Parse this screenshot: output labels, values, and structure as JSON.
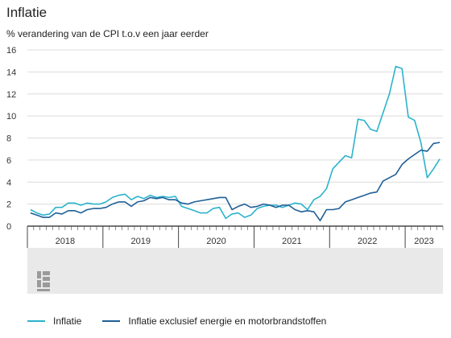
{
  "header": {
    "title": "Inflatie",
    "subtitle": "% verandering van de CPI t.o.v een jaar eerder"
  },
  "colors": {
    "inflatie": "#2bb3cc",
    "kern": "#1f5f96",
    "grid": "#dcdcdc",
    "footer_band": "#e9e9e9"
  },
  "logo": {
    "icon": "cbs-logo-icon"
  },
  "chart_data": {
    "type": "line",
    "title": "Inflatie",
    "subtitle": "% verandering van de CPI t.o.v een jaar eerder",
    "ylim": [
      0,
      16
    ],
    "yticks": [
      0,
      2,
      4,
      6,
      8,
      10,
      12,
      14,
      16
    ],
    "xlim": [
      "2018-01",
      "2023-06"
    ],
    "year_labels": [
      "2018",
      "2019",
      "2020",
      "2021",
      "2022",
      "2023"
    ],
    "grid": true,
    "legend": "bottom",
    "x": [
      "2018-01",
      "2018-02",
      "2018-03",
      "2018-04",
      "2018-05",
      "2018-06",
      "2018-07",
      "2018-08",
      "2018-09",
      "2018-10",
      "2018-11",
      "2018-12",
      "2019-01",
      "2019-02",
      "2019-03",
      "2019-04",
      "2019-05",
      "2019-06",
      "2019-07",
      "2019-08",
      "2019-09",
      "2019-10",
      "2019-11",
      "2019-12",
      "2020-01",
      "2020-02",
      "2020-03",
      "2020-04",
      "2020-05",
      "2020-06",
      "2020-07",
      "2020-08",
      "2020-09",
      "2020-10",
      "2020-11",
      "2020-12",
      "2021-01",
      "2021-02",
      "2021-03",
      "2021-04",
      "2021-05",
      "2021-06",
      "2021-07",
      "2021-08",
      "2021-09",
      "2021-10",
      "2021-11",
      "2021-12",
      "2022-01",
      "2022-02",
      "2022-03",
      "2022-04",
      "2022-05",
      "2022-06",
      "2022-07",
      "2022-08",
      "2022-09",
      "2022-10",
      "2022-11",
      "2022-12",
      "2023-01",
      "2023-02",
      "2023-03",
      "2023-04",
      "2023-05",
      "2023-06"
    ],
    "series": [
      {
        "name": "Inflatie",
        "color": "#2bb3cc",
        "values": [
          1.5,
          1.2,
          1.0,
          1.1,
          1.7,
          1.7,
          2.1,
          2.1,
          1.9,
          2.1,
          2.0,
          2.0,
          2.2,
          2.6,
          2.8,
          2.9,
          2.4,
          2.7,
          2.5,
          2.8,
          2.6,
          2.7,
          2.6,
          2.7,
          1.8,
          1.6,
          1.4,
          1.2,
          1.2,
          1.6,
          1.7,
          0.7,
          1.1,
          1.2,
          0.8,
          1.0,
          1.6,
          1.8,
          1.9,
          1.9,
          1.7,
          1.9,
          2.1,
          2.0,
          1.5,
          2.4,
          2.7,
          3.4,
          5.2,
          5.8,
          6.4,
          6.2,
          9.7,
          9.6,
          8.8,
          8.6,
          10.3,
          12.0,
          14.5,
          14.3,
          9.9,
          9.6,
          7.6,
          4.4,
          5.2,
          6.1
        ]
      },
      {
        "name": "Inflatie exclusief energie en motorbrandstoffen",
        "color": "#1f5f96",
        "values": [
          1.2,
          1.0,
          0.8,
          0.8,
          1.2,
          1.1,
          1.4,
          1.4,
          1.2,
          1.5,
          1.6,
          1.6,
          1.7,
          2.0,
          2.2,
          2.2,
          1.8,
          2.2,
          2.3,
          2.6,
          2.5,
          2.6,
          2.4,
          2.4,
          2.1,
          2.0,
          2.2,
          2.3,
          2.4,
          2.5,
          2.6,
          2.6,
          1.5,
          1.8,
          2.0,
          1.7,
          1.8,
          2.0,
          1.9,
          1.7,
          1.9,
          1.9,
          1.5,
          1.3,
          1.4,
          1.3,
          0.5,
          1.5,
          1.5,
          1.6,
          2.2,
          2.4,
          2.6,
          2.8,
          3.0,
          3.1,
          4.1,
          4.4,
          4.7,
          5.6,
          6.1,
          6.5,
          6.9,
          6.8,
          7.5,
          7.6
        ]
      }
    ]
  }
}
